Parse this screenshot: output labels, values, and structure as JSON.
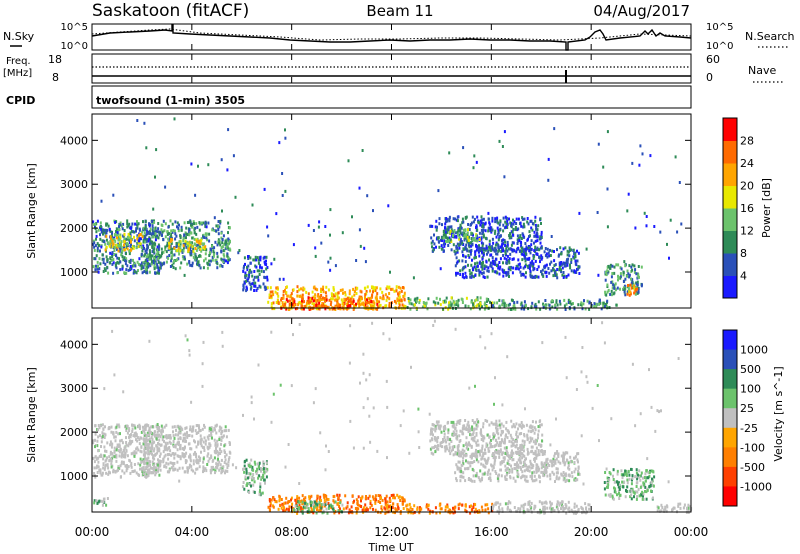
{
  "header": {
    "station": "Saskatoon (fitACF)",
    "beam": "Beam 11",
    "date": "04/Aug/2017"
  },
  "noise_panel": {
    "left_label": "N.Sky",
    "right_label": "N.Search",
    "left_ticks": [
      "10^5",
      "10^0"
    ],
    "right_ticks": [
      "10^5",
      "10^0"
    ]
  },
  "freq_panel": {
    "left_label_1": "Freq.",
    "left_label_2": "[MHz]",
    "right_label": "Nave",
    "left_ticks": [
      "18",
      "8"
    ],
    "right_ticks": [
      "60",
      "0"
    ]
  },
  "cpid": {
    "label": "CPID",
    "value": "twofsound (1-min) 3505"
  },
  "colors": {
    "power": [
      "#1a1aff",
      "#2a50b8",
      "#2e8b57",
      "#6cc36c",
      "#e8e800",
      "#ffa500",
      "#ff6a00",
      "#ff0000"
    ],
    "velocity": [
      "#1a1aff",
      "#2a50b8",
      "#2e8b57",
      "#6cc36c",
      "#c0c0c0",
      "#ffa500",
      "#ff7f00",
      "#ff4000",
      "#ff0000"
    ],
    "ground_scatter": "#c0c0c0"
  },
  "chart_data": [
    {
      "type": "heatmap",
      "name": "power",
      "ylabel": "Slant Range [km]",
      "ylim": [
        180,
        4600
      ],
      "yticks": [
        "1000",
        "2000",
        "3000",
        "4000"
      ],
      "yticks_values": [
        1000,
        2000,
        3000,
        4000
      ],
      "xlim_hours": [
        0,
        24
      ],
      "colorbar_label": "Power [dB]",
      "colorbar_ticks": [
        "4",
        "8",
        "12",
        "16",
        "20",
        "24",
        "28"
      ],
      "colorbar_range": [
        0,
        32
      ],
      "echo_regions": [
        {
          "t0": 0.0,
          "t1": 2.7,
          "r0": 1000,
          "r1": 2200,
          "p": 10
        },
        {
          "t0": 0.5,
          "t1": 2.0,
          "r0": 1500,
          "r1": 1900,
          "p": 20
        },
        {
          "t0": 2.0,
          "t1": 5.5,
          "r0": 1100,
          "r1": 2200,
          "p": 12
        },
        {
          "t0": 3.0,
          "t1": 4.5,
          "r0": 1500,
          "r1": 1800,
          "p": 20
        },
        {
          "t0": 6.0,
          "t1": 7.0,
          "r0": 600,
          "r1": 1400,
          "p": 8
        },
        {
          "t0": 7.0,
          "t1": 12.5,
          "r0": 180,
          "r1": 700,
          "p": 24
        },
        {
          "t0": 7.5,
          "t1": 11.5,
          "r0": 180,
          "r1": 450,
          "p": 28
        },
        {
          "t0": 12.5,
          "t1": 16.0,
          "r0": 180,
          "r1": 450,
          "p": 16
        },
        {
          "t0": 13.5,
          "t1": 18.0,
          "r0": 1500,
          "r1": 2300,
          "p": 8
        },
        {
          "t0": 14.0,
          "t1": 15.5,
          "r0": 1700,
          "r1": 2000,
          "p": 16
        },
        {
          "t0": 14.5,
          "t1": 19.5,
          "r0": 900,
          "r1": 1600,
          "p": 8
        },
        {
          "t0": 16.0,
          "t1": 21.0,
          "r0": 180,
          "r1": 400,
          "p": 12
        },
        {
          "t0": 20.5,
          "t1": 22.0,
          "r0": 500,
          "r1": 1200,
          "p": 12
        },
        {
          "t0": 21.3,
          "t1": 21.8,
          "r0": 500,
          "r1": 750,
          "p": 24
        }
      ]
    },
    {
      "type": "heatmap",
      "name": "velocity",
      "ylabel": "Slant Range [km]",
      "xlabel": "Time UT",
      "ylim": [
        180,
        4600
      ],
      "yticks": [
        "1000",
        "2000",
        "3000",
        "4000"
      ],
      "yticks_values": [
        1000,
        2000,
        3000,
        4000
      ],
      "xticks": [
        "00:00",
        "04:00",
        "08:00",
        "12:00",
        "16:00",
        "20:00",
        "00:00"
      ],
      "xticks_values": [
        0,
        4,
        8,
        12,
        16,
        20,
        24
      ],
      "xlim_hours": [
        0,
        24
      ],
      "colorbar_label": "Velocity [m s^-1]",
      "colorbar_ticks": [
        "1000",
        "500",
        "100",
        "25",
        "-25",
        "-100",
        "-500",
        "-1000"
      ],
      "echo_regions": [
        {
          "t0": 0.0,
          "t1": 2.7,
          "r0": 1000,
          "r1": 2200,
          "v": 0
        },
        {
          "t0": 2.0,
          "t1": 5.5,
          "r0": 1100,
          "r1": 2200,
          "v": 0
        },
        {
          "t0": 0.0,
          "t1": 0.6,
          "r0": 350,
          "r1": 550,
          "v": 80
        },
        {
          "t0": 6.0,
          "t1": 7.0,
          "r0": 600,
          "r1": 1400,
          "v": 200
        },
        {
          "t0": 7.0,
          "t1": 12.5,
          "r0": 180,
          "r1": 600,
          "v": -100
        },
        {
          "t0": 8.0,
          "t1": 10.0,
          "r0": 180,
          "r1": 450,
          "v": 60
        },
        {
          "t0": 12.5,
          "t1": 16.0,
          "r0": 180,
          "r1": 400,
          "v": -100
        },
        {
          "t0": 13.5,
          "t1": 18.0,
          "r0": 1500,
          "r1": 2300,
          "v": 0
        },
        {
          "t0": 14.5,
          "t1": 19.5,
          "r0": 900,
          "r1": 1600,
          "v": 0
        },
        {
          "t0": 16.0,
          "t1": 20.0,
          "r0": 180,
          "r1": 450,
          "v": 0
        },
        {
          "t0": 20.5,
          "t1": 22.5,
          "r0": 500,
          "r1": 1200,
          "v": 200
        },
        {
          "t0": 22.5,
          "t1": 24.0,
          "r0": 200,
          "r1": 400,
          "v": 0
        }
      ]
    }
  ]
}
